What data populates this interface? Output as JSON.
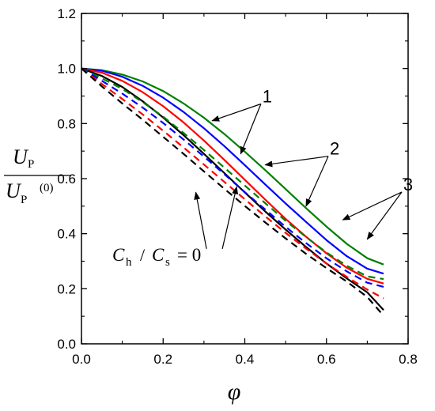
{
  "chart_data": {
    "type": "line",
    "title": "",
    "xlabel": "φ",
    "ylabel": {
      "numerator": "U",
      "numerator_sub": "P",
      "denominator": "U",
      "denominator_sub": "P",
      "denominator_sup": "(0)"
    },
    "xlim": [
      0.0,
      0.8
    ],
    "ylim": [
      0.0,
      1.2
    ],
    "x_ticks": [
      "0.0",
      "0.2",
      "0.4",
      "0.6",
      "0.8"
    ],
    "y_ticks": [
      "0.0",
      "0.2",
      "0.4",
      "0.6",
      "0.8",
      "1.0",
      "1.2"
    ],
    "grid": false,
    "legend": "none",
    "x": [
      0.0,
      0.05,
      0.1,
      0.15,
      0.2,
      0.25,
      0.3,
      0.35,
      0.4,
      0.45,
      0.5,
      0.55,
      0.6,
      0.65,
      0.7,
      0.74
    ],
    "series": [
      {
        "color": "#008000",
        "dash": false,
        "values": [
          1.0,
          0.994,
          0.978,
          0.953,
          0.918,
          0.873,
          0.821,
          0.762,
          0.698,
          0.631,
          0.562,
          0.493,
          0.426,
          0.363,
          0.311,
          0.288
        ]
      },
      {
        "color": "#0000ff",
        "dash": false,
        "values": [
          1.0,
          0.992,
          0.97,
          0.937,
          0.894,
          0.842,
          0.783,
          0.718,
          0.649,
          0.579,
          0.51,
          0.443,
          0.377,
          0.318,
          0.273,
          0.255
        ]
      },
      {
        "color": "#ff0000",
        "dash": false,
        "values": [
          1.0,
          0.985,
          0.955,
          0.914,
          0.863,
          0.804,
          0.738,
          0.668,
          0.596,
          0.524,
          0.454,
          0.389,
          0.329,
          0.276,
          0.236,
          0.219
        ]
      },
      {
        "color": "#000000",
        "dash": false,
        "values": [
          1.0,
          0.973,
          0.933,
          0.881,
          0.822,
          0.758,
          0.69,
          0.62,
          0.55,
          0.481,
          0.415,
          0.352,
          0.292,
          0.237,
          0.187,
          0.123
        ]
      },
      {
        "color": "#008000",
        "dash": true,
        "values": [
          1.0,
          0.964,
          0.926,
          0.878,
          0.825,
          0.766,
          0.704,
          0.64,
          0.575,
          0.511,
          0.447,
          0.388,
          0.332,
          0.283,
          0.245,
          0.235
        ]
      },
      {
        "color": "#0000ff",
        "dash": true,
        "values": [
          1.0,
          0.955,
          0.909,
          0.858,
          0.802,
          0.742,
          0.68,
          0.616,
          0.551,
          0.488,
          0.425,
          0.366,
          0.311,
          0.263,
          0.222,
          0.207
        ]
      },
      {
        "color": "#ff0000",
        "dash": true,
        "values": [
          1.0,
          0.944,
          0.889,
          0.833,
          0.774,
          0.713,
          0.651,
          0.588,
          0.525,
          0.463,
          0.403,
          0.346,
          0.292,
          0.243,
          0.197,
          0.165
        ]
      },
      {
        "color": "#000000",
        "dash": true,
        "values": [
          1.0,
          0.935,
          0.873,
          0.814,
          0.752,
          0.69,
          0.626,
          0.563,
          0.501,
          0.441,
          0.383,
          0.327,
          0.275,
          0.226,
          0.17,
          0.102
        ]
      }
    ],
    "annotations": [
      {
        "text": "1",
        "x": 0.455,
        "y": 0.9,
        "arrows_to": [
          [
            0.32,
            0.81
          ],
          [
            0.39,
            0.69
          ]
        ]
      },
      {
        "text": "2",
        "x": 0.62,
        "y": 0.71,
        "arrows_to": [
          [
            0.45,
            0.65
          ],
          [
            0.55,
            0.5
          ]
        ]
      },
      {
        "text": "3",
        "x": 0.8,
        "y": 0.58,
        "arrows_to": [
          [
            0.64,
            0.45
          ],
          [
            0.7,
            0.38
          ]
        ]
      },
      {
        "text": "C_h / C_s = 0",
        "x": 0.4,
        "y": 0.3,
        "arrows_to": [
          [
            0.28,
            0.55
          ],
          [
            0.38,
            0.57
          ]
        ]
      }
    ],
    "ch_cs_label": {
      "C": "C",
      "sub_h": "h",
      "slash": "/",
      "sub_s": "s",
      "eq": "= 0"
    }
  }
}
